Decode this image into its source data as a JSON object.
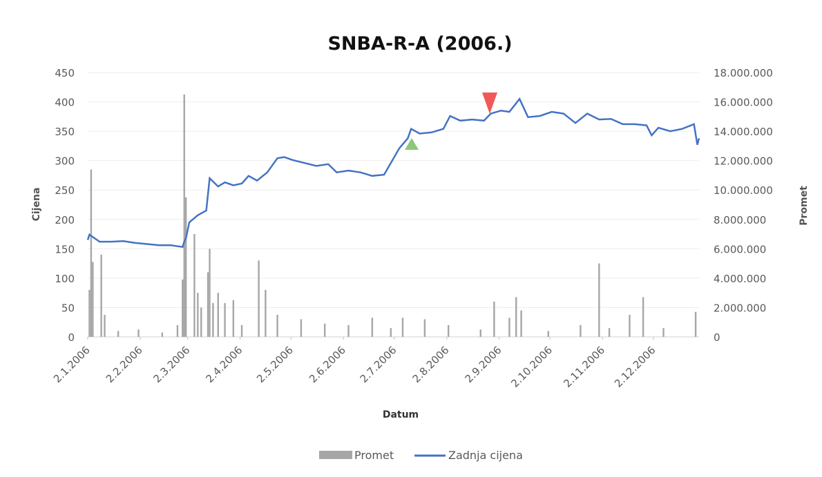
{
  "chart_data": {
    "type": "line_bar",
    "title": "SNBA-R-A (2006.)",
    "xlabel": "Datum",
    "ylabel": "Cijena",
    "y2label": "Promet",
    "xlim": [
      "2.1.2006",
      "29.12.2006"
    ],
    "xticks": [
      "2.1.2006",
      "2.2.2006",
      "2.3.2006",
      "2.4.2006",
      "2.5.2006",
      "2.6.2006",
      "2.7.2006",
      "2.8.2006",
      "2.9.2006",
      "2.10.2006",
      "2.11.2006",
      "2.12.2006"
    ],
    "ylim": [
      0,
      450
    ],
    "yticks": [
      0,
      50,
      100,
      150,
      200,
      250,
      300,
      350,
      400,
      450
    ],
    "y2lim": [
      0,
      18000000
    ],
    "y2ticks": [
      {
        "value": 0,
        "label": "0"
      },
      {
        "value": 2000000,
        "label": "2.000.000"
      },
      {
        "value": 4000000,
        "label": "4.000.000"
      },
      {
        "value": 6000000,
        "label": "6.000.000"
      },
      {
        "value": 8000000,
        "label": "8.000.000"
      },
      {
        "value": 10000000,
        "label": "10.000.000"
      },
      {
        "value": 12000000,
        "label": "12.000.000"
      },
      {
        "value": 14000000,
        "label": "14.000.000"
      },
      {
        "value": 16000000,
        "label": "16.000.000"
      },
      {
        "value": 18000000,
        "label": "18.000.000"
      }
    ],
    "grid": true,
    "series": [
      {
        "name": "Promet",
        "type": "bar",
        "axis": "y2",
        "color": "#a6a6a6",
        "x": [
          "3.1.2006",
          "4.1.2006",
          "5.1.2006",
          "10.1.2006",
          "12.1.2006",
          "20.1.2006",
          "1.2.2006",
          "15.2.2006",
          "24.2.2006",
          "27.2.2006",
          "28.2.2006",
          "1.3.2006",
          "6.3.2006",
          "8.3.2006",
          "10.3.2006",
          "14.3.2006",
          "15.3.2006",
          "17.3.2006",
          "20.3.2006",
          "24.3.2006",
          "29.3.2006",
          "3.4.2006",
          "13.4.2006",
          "17.4.2006",
          "24.4.2006",
          "8.5.2006",
          "22.5.2006",
          "5.6.2006",
          "19.6.2006",
          "30.6.2006",
          "7.7.2006",
          "20.7.2006",
          "3.8.2006",
          "22.8.2006",
          "30.8.2006",
          "8.9.2006",
          "12.9.2006",
          "15.9.2006",
          "1.10.2006",
          "20.10.2006",
          "31.10.2006",
          "6.11.2006",
          "18.11.2006",
          "26.11.2006",
          "8.12.2006",
          "27.12.2006"
        ],
        "values": [
          3200000,
          11400000,
          5100000,
          5600000,
          1500000,
          400000,
          500000,
          300000,
          800000,
          3900000,
          16500000,
          9500000,
          7000000,
          3000000,
          2000000,
          4400000,
          6000000,
          2300000,
          3000000,
          2300000,
          2500000,
          800000,
          5200000,
          3200000,
          1500000,
          1200000,
          900000,
          800000,
          1300000,
          600000,
          1300000,
          1200000,
          800000,
          500000,
          2400000,
          1300000,
          2700000,
          1800000,
          400000,
          800000,
          5000000,
          600000,
          1500000,
          2700000,
          600000,
          1700000
        ]
      },
      {
        "name": "Zadnja cijena",
        "type": "line",
        "color": "#4472c4",
        "x": [
          "2.1.2006",
          "3.1.2006",
          "9.1.2006",
          "16.1.2006",
          "23.1.2006",
          "30.1.2006",
          "6.2.2006",
          "13.2.2006",
          "20.2.2006",
          "27.2.2006",
          "28.2.2006",
          "1.3.2006",
          "3.3.2006",
          "8.3.2006",
          "13.3.2006",
          "15.3.2006",
          "20.3.2006",
          "24.3.2006",
          "29.3.2006",
          "3.4.2006",
          "7.4.2006",
          "12.4.2006",
          "18.4.2006",
          "24.4.2006",
          "28.4.2006",
          "3.5.2006",
          "10.5.2006",
          "17.5.2006",
          "24.5.2006",
          "29.5.2006",
          "5.6.2006",
          "12.6.2006",
          "19.6.2006",
          "26.6.2006",
          "30.6.2006",
          "5.7.2006",
          "10.7.2006",
          "12.7.2006",
          "17.7.2006",
          "24.7.2006",
          "31.7.2006",
          "4.8.2006",
          "10.8.2006",
          "17.8.2006",
          "24.8.2006",
          "28.8.2006",
          "3.9.2006",
          "8.9.2006",
          "14.9.2006",
          "19.9.2006",
          "26.9.2006",
          "3.10.2006",
          "10.10.2006",
          "17.10.2006",
          "24.10.2006",
          "31.10.2006",
          "7.11.2006",
          "14.11.2006",
          "21.11.2006",
          "28.11.2006",
          "1.12.2006",
          "5.12.2006",
          "12.12.2006",
          "19.12.2006",
          "26.12.2006",
          "28.12.2006",
          "29.12.2006"
        ],
        "values": [
          165,
          174,
          162,
          162,
          163,
          160,
          158,
          156,
          156,
          153,
          162,
          168,
          195,
          207,
          215,
          270,
          256,
          263,
          258,
          261,
          274,
          266,
          280,
          304,
          306,
          301,
          296,
          291,
          294,
          280,
          283,
          280,
          274,
          276,
          296,
          321,
          338,
          354,
          346,
          348,
          354,
          376,
          368,
          370,
          368,
          380,
          385,
          383,
          405,
          374,
          376,
          383,
          380,
          364,
          380,
          370,
          371,
          362,
          362,
          360,
          343,
          356,
          350,
          354,
          362,
          327,
          338
        ]
      }
    ]
  }
}
